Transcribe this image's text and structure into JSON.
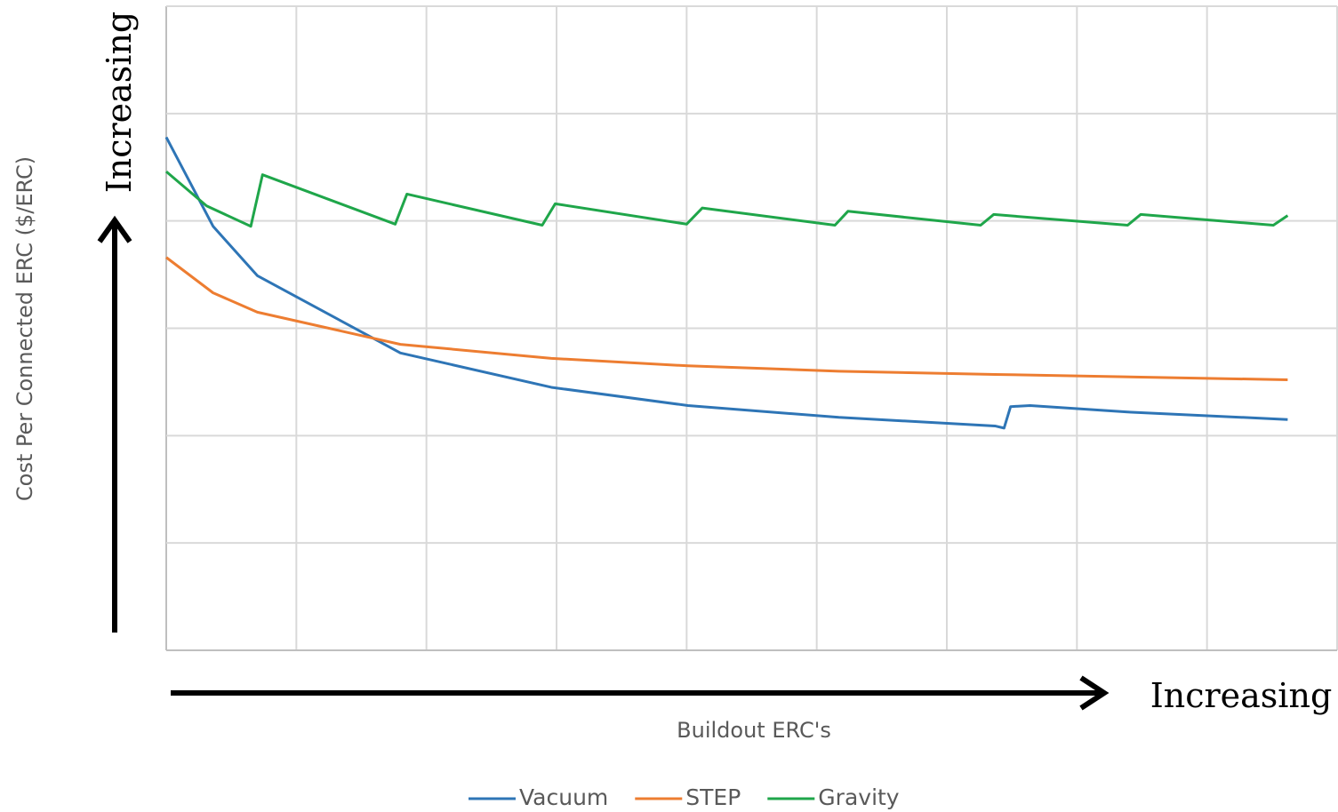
{
  "chart_data": {
    "type": "line",
    "x_label": "Buildout ERC's",
    "y_label": "Cost Per Connected ERC ($/ERC)",
    "annotations": [
      "Increasing",
      "Increasing"
    ],
    "xlim": [
      0,
      9
    ],
    "ylim": [
      0,
      6
    ],
    "xticks": [
      0,
      1,
      2,
      3,
      4,
      5,
      6,
      7,
      8,
      9
    ],
    "yticks": [
      0,
      1,
      2,
      3,
      4,
      5,
      6
    ],
    "grid": true,
    "legend": "bottom",
    "series": [
      {
        "name": "Vacuum",
        "color": "#2e75b6",
        "x": [
          0,
          0.36,
          0.7,
          1.8,
          2.96,
          4.01,
          5.17,
          6.37,
          6.44,
          6.49,
          6.64,
          7.39,
          8.62
        ],
        "values": [
          4.78,
          3.95,
          3.49,
          2.77,
          2.45,
          2.28,
          2.17,
          2.09,
          2.07,
          2.27,
          2.28,
          2.22,
          2.15
        ]
      },
      {
        "name": "STEP",
        "color": "#ed7d31",
        "x": [
          0,
          0.36,
          0.7,
          1.8,
          2.96,
          4.01,
          5.17,
          6.37,
          8.62
        ],
        "values": [
          3.66,
          3.33,
          3.15,
          2.85,
          2.72,
          2.65,
          2.6,
          2.57,
          2.52
        ]
      },
      {
        "name": "Gravity",
        "color": "#1fa64a",
        "x": [
          0,
          0.31,
          0.65,
          0.74,
          1.76,
          1.85,
          2.89,
          2.99,
          4.0,
          4.12,
          5.14,
          5.24,
          6.26,
          6.36,
          7.39,
          7.49,
          8.51,
          8.62
        ],
        "values": [
          4.46,
          4.14,
          3.95,
          4.43,
          3.97,
          4.25,
          3.96,
          4.16,
          3.97,
          4.12,
          3.96,
          4.09,
          3.96,
          4.06,
          3.96,
          4.06,
          3.96,
          4.05
        ]
      }
    ]
  }
}
